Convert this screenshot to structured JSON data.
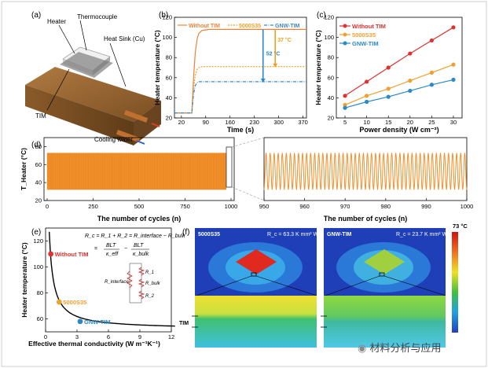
{
  "panels": {
    "a": {
      "label": "(a)",
      "callouts": [
        "Heater",
        "Thermocouple",
        "Heat Sink (Cu)",
        "TIM",
        "Cooling water"
      ]
    },
    "b": {
      "label": "(b)",
      "type": "line",
      "title": "",
      "xlabel": "Time (s)",
      "ylabel": "Heater temperature (°C)",
      "xlim": [
        0,
        380
      ],
      "ylim": [
        20,
        120
      ],
      "xticks": [
        "20",
        "90",
        "160",
        "230",
        "300",
        "370"
      ],
      "yticks": [
        "20",
        "40",
        "60",
        "80",
        "100",
        "120"
      ],
      "legend": [
        "Without TIM",
        "5000S35",
        "GNW-TIM"
      ],
      "colors": [
        "#e8843a",
        "#f0a020",
        "#3a88c8"
      ],
      "annotations": [
        "52 °C",
        "37 °C"
      ]
    },
    "c": {
      "label": "(c)",
      "type": "line",
      "xlabel": "Power density (W cm⁻²)",
      "ylabel": "Heater temperature (°C)",
      "xticks": [
        "5",
        "10",
        "15",
        "20",
        "25",
        "30"
      ],
      "yticks": [
        "20",
        "40",
        "60",
        "80",
        "100",
        "120"
      ],
      "legend": [
        "Without TIM",
        "5000S35",
        "GNW-TIM"
      ],
      "colors": [
        "#e03030",
        "#f0a030",
        "#2a8ac8"
      ]
    },
    "d": {
      "label": "(d)",
      "ylabel": "T_Heater (°C)",
      "left_xlabel": "The number of cycles (n)",
      "right_xlabel": "The number of cycles (n)",
      "left_xticks": [
        "0",
        "250",
        "500",
        "750",
        "1000"
      ],
      "right_xticks": [
        "950",
        "960",
        "970",
        "980",
        "990",
        "1000"
      ],
      "yticks": [
        "20",
        "40",
        "60",
        "80"
      ]
    },
    "e": {
      "label": "(e)",
      "xlabel": "Effective thermal conductivity (W m⁻¹K⁻¹)",
      "ylabel": "Heater temperature (°C)",
      "xticks": [
        "0",
        "3",
        "6",
        "9",
        "12"
      ],
      "yticks": [
        "60",
        "80",
        "100",
        "120"
      ],
      "points": [
        "Without TIM",
        "5000S35",
        "GNW-TIM"
      ],
      "equation1": "R_c = R_1 + R_2 = R_interface − R_bulk",
      "eq_BLT": "BLT",
      "eq_keff": "κ_eff",
      "eq_kbulk": "κ_bulk",
      "circuit": [
        "R_interface",
        "R_1",
        "R_bulk",
        "R_2"
      ]
    },
    "f": {
      "label": "(f)",
      "left_title": "5000S35",
      "left_rc": "R_c = 63.3 K mm² W⁻¹",
      "right_title": "GNW-TIM",
      "right_rc": "R_c = 23.7 K mm² W⁻¹",
      "colorbar_label": "73 °C",
      "tim_label": "TIM"
    }
  },
  "chart_data": [
    {
      "panel": "b",
      "type": "line",
      "title": "",
      "xlabel": "Time (s)",
      "ylabel": "Heater temperature (°C)",
      "xlim": [
        0,
        380
      ],
      "ylim": [
        20,
        120
      ],
      "series": [
        {
          "name": "Without TIM",
          "x": [
            0,
            50,
            55,
            60,
            65,
            70,
            80,
            100,
            380
          ],
          "y": [
            25,
            25,
            60,
            85,
            98,
            104,
            107,
            108,
            108
          ]
        },
        {
          "name": "5000S35",
          "x": [
            0,
            50,
            55,
            60,
            65,
            70,
            80,
            100,
            380
          ],
          "y": [
            25,
            25,
            50,
            62,
            68,
            70,
            71,
            71,
            71
          ]
        },
        {
          "name": "GNW-TIM",
          "x": [
            0,
            50,
            55,
            60,
            65,
            70,
            80,
            100,
            380
          ],
          "y": [
            25,
            25,
            44,
            52,
            55,
            56,
            56,
            56,
            56
          ]
        }
      ],
      "annotations": [
        {
          "text": "52 °C",
          "x": 255,
          "from": 108,
          "to": 56
        },
        {
          "text": "37 °C",
          "x": 290,
          "from": 108,
          "to": 71
        }
      ]
    },
    {
      "panel": "c",
      "type": "line",
      "xlabel": "Power density (W cm⁻²)",
      "ylabel": "Heater temperature (°C)",
      "xlim": [
        3,
        32
      ],
      "ylim": [
        20,
        120
      ],
      "x": [
        5,
        10,
        15,
        20,
        25,
        30
      ],
      "series": [
        {
          "name": "Without TIM",
          "values": [
            42,
            56,
            70,
            84,
            97,
            110
          ]
        },
        {
          "name": "5000S35",
          "values": [
            33,
            42,
            49,
            57,
            65,
            73
          ]
        },
        {
          "name": "GNW-TIM",
          "values": [
            30,
            36,
            41,
            47,
            53,
            58
          ]
        }
      ]
    },
    {
      "panel": "d",
      "type": "line",
      "xlabel": "The number of cycles (n)",
      "ylabel": "T_Heater (°C)",
      "left_xlim": [
        0,
        1000
      ],
      "right_xlim": [
        950,
        1000
      ],
      "ylim": [
        20,
        90
      ],
      "min": 32,
      "max": 73
    },
    {
      "panel": "e",
      "type": "line",
      "xlabel": "Effective thermal conductivity (W m⁻¹K⁻¹)",
      "ylabel": "Heater temperature (°C)",
      "xlim": [
        0,
        12
      ],
      "ylim": [
        50,
        130
      ],
      "points": [
        {
          "name": "Without TIM",
          "x": 0.5,
          "y": 110,
          "color": "#e03030"
        },
        {
          "name": "5000S35",
          "x": 1.3,
          "y": 73,
          "color": "#f0a030"
        },
        {
          "name": "GNW-TIM",
          "x": 3.3,
          "y": 58,
          "color": "#2a8ac8"
        }
      ]
    }
  ]
}
